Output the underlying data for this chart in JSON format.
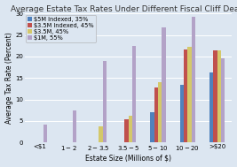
{
  "title": "Average Estate Tax Rates Under Different Fiscal Cliff Deals",
  "xlabel": "Estate Size (Millions of $)",
  "ylabel": "Average Tax Rate (Percent)",
  "categories": [
    "<$1",
    "$1-$2",
    "$2-$3.5",
    "$3.5-$5",
    "$5-$10",
    "$10-$20",
    ">$20"
  ],
  "series": [
    {
      "label": "$5M Indexed, 35%",
      "color": "#4f81bd",
      "values": [
        0,
        0,
        0,
        0,
        7.0,
        13.5,
        16.3
      ]
    },
    {
      "label": "$3.5M Indexed, 45%",
      "color": "#c0504d",
      "values": [
        0,
        0,
        0,
        5.5,
        12.8,
        21.7,
        21.5
      ]
    },
    {
      "label": "$3.5M, 45%",
      "color": "#d4c86a",
      "values": [
        0,
        0,
        3.8,
        6.3,
        14.0,
        22.3,
        21.5
      ]
    },
    {
      "label": "$1M, 55%",
      "color": "#b3a2c7",
      "values": [
        4.2,
        7.5,
        19.0,
        22.5,
        26.8,
        29.2,
        19.5
      ]
    }
  ],
  "ylim": [
    0,
    30
  ],
  "yticks": [
    0,
    5,
    10,
    15,
    20,
    25,
    30
  ],
  "plot_bg_color": "#dce6f1",
  "fig_bg_color": "#dce6f1",
  "grid_color": "#ffffff",
  "title_fontsize": 6.5,
  "axis_fontsize": 5.5,
  "tick_fontsize": 5,
  "legend_fontsize": 4.8,
  "bar_width": 0.13
}
